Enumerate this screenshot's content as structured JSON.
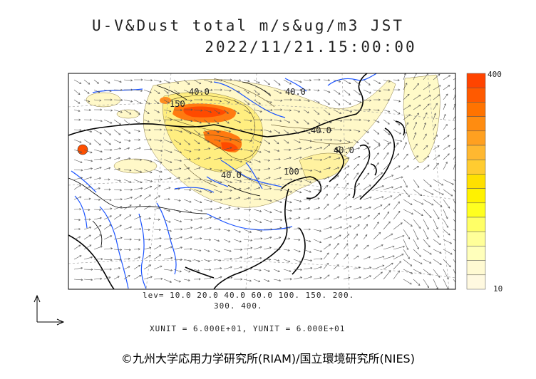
{
  "title": {
    "line1": "U-V&Dust total m/s&ug/m3 JST",
    "line2": "2022/11/21.15:00:00"
  },
  "contour_labels": [
    "40.0",
    "40.0",
    "150",
    "40.0",
    "40.0",
    "100",
    "40.0"
  ],
  "legend": {
    "lev_line1": "lev= 10.0 20.0 40.0 60.0 100. 150. 200.",
    "lev_line2": "300. 400.",
    "unit_line": "XUNIT = 6.000E+01, YUNIT = 6.000E+01"
  },
  "colorbar": {
    "max_label": "400",
    "min_label": "10",
    "colors": [
      "#ff4400",
      "#ff5a00",
      "#ff7300",
      "#ff8c10",
      "#ffa020",
      "#ffb830",
      "#ffcc30",
      "#ffe000",
      "#fff200",
      "#ffff20",
      "#ffff66",
      "#ffff99",
      "#ffffbb",
      "#fffad2",
      "#fff9e0"
    ]
  },
  "credit": "©九州大学応用力学研究所(RIAM)/国立環境研究所(NIES)",
  "colors": {
    "coast": "#000000",
    "river": "#1a53ff",
    "grid": "#999999",
    "arrow": "#555555"
  },
  "icons": {
    "axes": "xy-axes-icon"
  }
}
